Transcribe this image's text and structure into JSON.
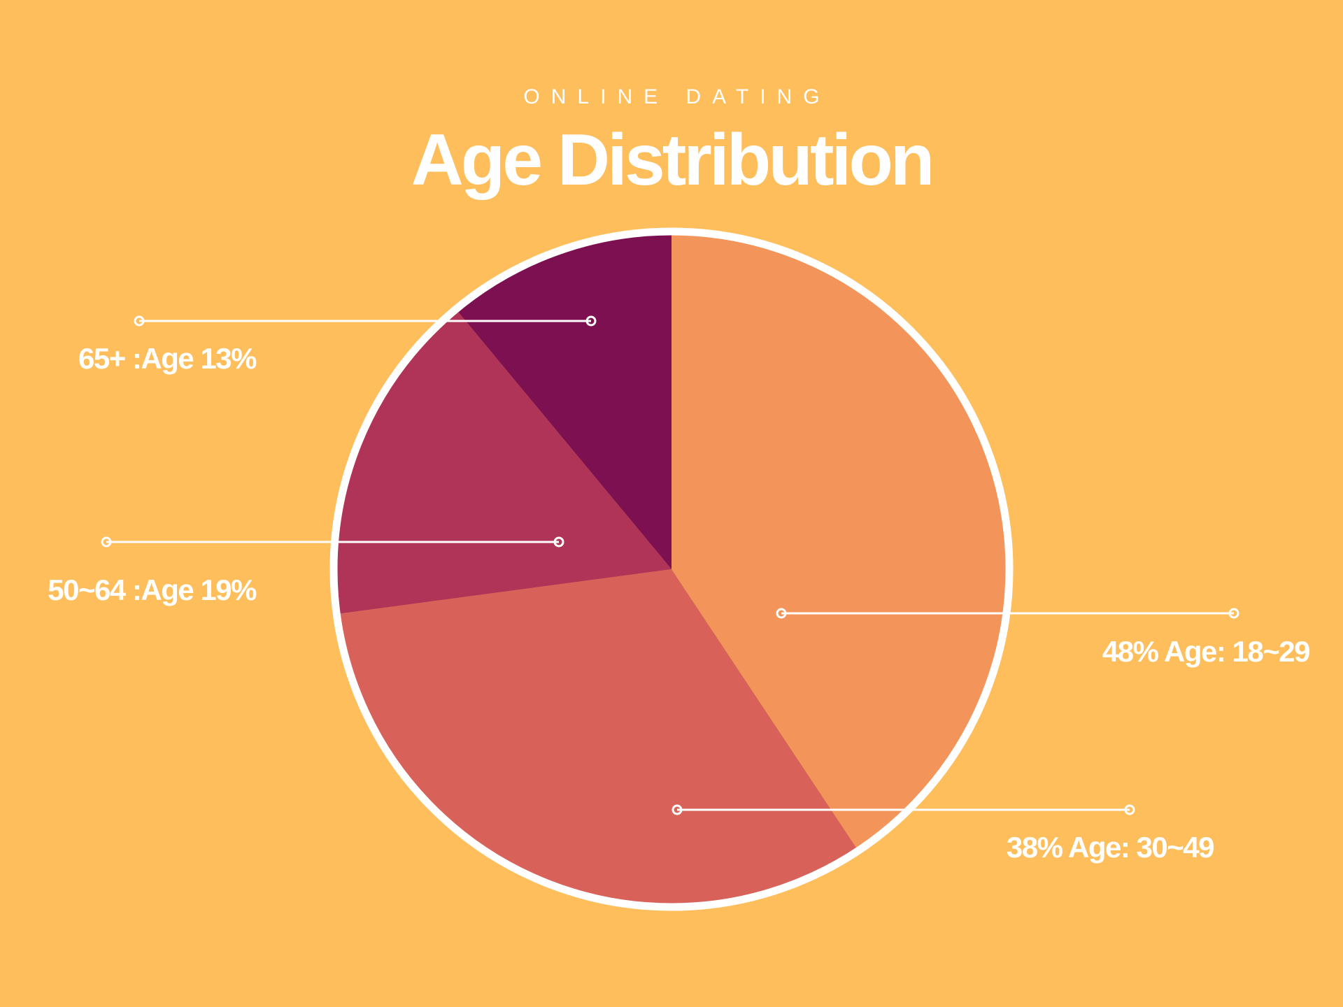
{
  "header": {
    "kicker": "ONLINE DATING",
    "title": "Age Distribution"
  },
  "colors": {
    "background": "#FFBE5C",
    "ring": "#ffffff"
  },
  "chart_data": {
    "type": "pie",
    "title": "Age Distribution",
    "subtitle": "ONLINE DATING",
    "slices": [
      {
        "id": "18-29",
        "label": "48%  Age: 18~29",
        "value": 48,
        "color": "#F3955A"
      },
      {
        "id": "30-49",
        "label": "38% Age: 30~49",
        "value": 38,
        "color": "#D8625A"
      },
      {
        "id": "50-64",
        "label": "50~64 :Age 19%",
        "value": 19,
        "color": "#B03457"
      },
      {
        "id": "65plus",
        "label": "65+ :Age 13%",
        "value": 13,
        "color": "#7C1051"
      }
    ]
  }
}
